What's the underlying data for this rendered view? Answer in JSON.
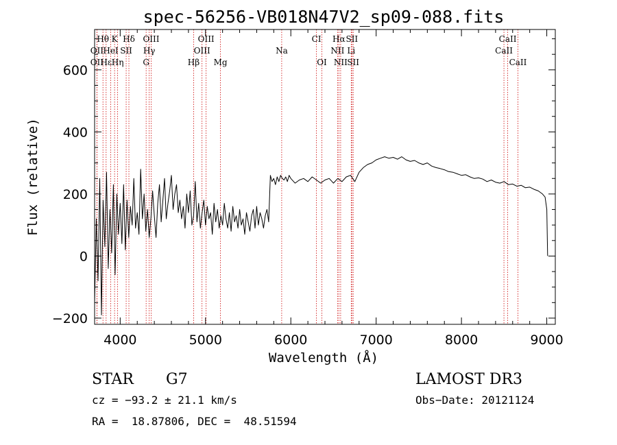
{
  "chart_data": {
    "type": "line",
    "title": "spec-56256-VB018N47V2_sp09-088.fits",
    "xlabel": "Wavelength (Å)",
    "ylabel": "Flux (relative)",
    "xlim": [
      3700,
      9100
    ],
    "ylim": [
      -220,
      730
    ],
    "x_ticks": [
      4000,
      5000,
      6000,
      7000,
      8000,
      9000
    ],
    "y_ticks": [
      -200,
      0,
      200,
      400,
      600
    ],
    "grid": false,
    "series": [
      {
        "name": "spectrum",
        "x": [
          3700,
          3720,
          3740,
          3760,
          3780,
          3800,
          3820,
          3840,
          3860,
          3880,
          3900,
          3920,
          3940,
          3960,
          3980,
          4000,
          4020,
          4040,
          4060,
          4080,
          4100,
          4120,
          4140,
          4160,
          4180,
          4200,
          4220,
          4240,
          4260,
          4280,
          4300,
          4320,
          4340,
          4360,
          4380,
          4400,
          4420,
          4440,
          4460,
          4480,
          4500,
          4520,
          4540,
          4560,
          4580,
          4600,
          4620,
          4640,
          4660,
          4680,
          4700,
          4720,
          4740,
          4760,
          4780,
          4800,
          4820,
          4840,
          4860,
          4880,
          4900,
          4920,
          4940,
          4960,
          4980,
          5000,
          5020,
          5040,
          5060,
          5080,
          5100,
          5120,
          5140,
          5160,
          5180,
          5200,
          5220,
          5240,
          5260,
          5280,
          5300,
          5320,
          5340,
          5360,
          5380,
          5400,
          5420,
          5440,
          5460,
          5480,
          5500,
          5520,
          5540,
          5560,
          5580,
          5600,
          5620,
          5640,
          5660,
          5680,
          5700,
          5720,
          5740,
          5760,
          5780,
          5800,
          5820,
          5840,
          5860,
          5880,
          5900,
          5920,
          5940,
          5960,
          5980,
          6000,
          6050,
          6100,
          6150,
          6200,
          6250,
          6300,
          6350,
          6400,
          6450,
          6500,
          6550,
          6600,
          6650,
          6700,
          6750,
          6800,
          6850,
          6900,
          6950,
          7000,
          7050,
          7100,
          7150,
          7200,
          7250,
          7300,
          7350,
          7400,
          7450,
          7500,
          7550,
          7600,
          7650,
          7700,
          7750,
          7800,
          7850,
          7900,
          7950,
          8000,
          8050,
          8100,
          8150,
          8200,
          8250,
          8300,
          8350,
          8400,
          8450,
          8500,
          8550,
          8600,
          8650,
          8700,
          8750,
          8800,
          8850,
          8900,
          8950,
          8980,
          9000,
          9010
        ],
        "y": [
          -150,
          120,
          -80,
          250,
          -190,
          180,
          30,
          270,
          -40,
          150,
          10,
          230,
          -60,
          200,
          70,
          170,
          40,
          230,
          20,
          180,
          60,
          160,
          100,
          250,
          90,
          140,
          70,
          280,
          120,
          200,
          80,
          150,
          60,
          120,
          210,
          130,
          60,
          170,
          230,
          110,
          180,
          250,
          120,
          170,
          210,
          260,
          150,
          200,
          230,
          140,
          180,
          120,
          160,
          90,
          200,
          140,
          210,
          100,
          130,
          240,
          110,
          170,
          90,
          140,
          180,
          100,
          160,
          120,
          140,
          70,
          170,
          110,
          150,
          90,
          130,
          100,
          170,
          120,
          90,
          140,
          80,
          160,
          110,
          130,
          90,
          150,
          100,
          120,
          70,
          140,
          110,
          80,
          130,
          150,
          90,
          160,
          100,
          140,
          120,
          90,
          130,
          150,
          110,
          260,
          240,
          250,
          230,
          255,
          240,
          260,
          250,
          245,
          255,
          240,
          260,
          250,
          235,
          245,
          250,
          240,
          255,
          245,
          235,
          245,
          250,
          235,
          250,
          240,
          255,
          260,
          240,
          270,
          285,
          295,
          300,
          310,
          315,
          320,
          315,
          318,
          312,
          320,
          310,
          305,
          308,
          300,
          295,
          300,
          290,
          285,
          282,
          278,
          272,
          270,
          265,
          260,
          262,
          255,
          250,
          252,
          248,
          240,
          245,
          238,
          235,
          240,
          230,
          232,
          225,
          228,
          220,
          222,
          215,
          210,
          200,
          190,
          150,
          0
        ]
      }
    ],
    "spectral_lines": [
      {
        "label": "Hθ",
        "x": 3798,
        "row": 1
      },
      {
        "label": "K",
        "x": 3934,
        "row": 1
      },
      {
        "label": "Hδ",
        "x": 4102,
        "row": 1
      },
      {
        "label": "OIII",
        "x": 4363,
        "row": 1
      },
      {
        "label": "OIII",
        "x": 5007,
        "row": 1
      },
      {
        "label": "CI",
        "x": 6300,
        "row": 1
      },
      {
        "label": "Hα",
        "x": 6563,
        "row": 1
      },
      {
        "label": "SII",
        "x": 6716,
        "row": 1
      },
      {
        "label": "CaII",
        "x": 8542,
        "row": 1
      },
      {
        "label": "OII",
        "x": 3727,
        "row": 2
      },
      {
        "label": "HeI",
        "x": 3889,
        "row": 2
      },
      {
        "label": "SII",
        "x": 4070,
        "row": 2
      },
      {
        "label": "Hγ",
        "x": 4340,
        "row": 2
      },
      {
        "label": "OIII",
        "x": 4959,
        "row": 2
      },
      {
        "label": "Na",
        "x": 5893,
        "row": 2
      },
      {
        "label": "NII",
        "x": 6548,
        "row": 2
      },
      {
        "label": "Li",
        "x": 6708,
        "row": 2
      },
      {
        "label": "CaII",
        "x": 8498,
        "row": 2
      },
      {
        "label": "OII",
        "x": 3727,
        "row": 3
      },
      {
        "label": "Hε",
        "x": 3835,
        "row": 3
      },
      {
        "label": "Hη",
        "x": 3970,
        "row": 3
      },
      {
        "label": "G",
        "x": 4304,
        "row": 3
      },
      {
        "label": "Hβ",
        "x": 4861,
        "row": 3
      },
      {
        "label": "Mg",
        "x": 5175,
        "row": 3
      },
      {
        "label": "OI",
        "x": 6364,
        "row": 3
      },
      {
        "label": "NII",
        "x": 6584,
        "row": 3
      },
      {
        "label": "SII",
        "x": 6731,
        "row": 3
      },
      {
        "label": "CaII",
        "x": 8662,
        "row": 3
      }
    ],
    "line_marker_color": "#cc0000"
  },
  "info": {
    "class": "STAR",
    "subclass": "G7",
    "survey": "LAMOST DR3",
    "cz": "cz = −93.2 ± 21.1 km/s",
    "obs_date": "Obs−Date: 20121124",
    "radec": "RA =  18.87806, DEC =  48.51594"
  }
}
